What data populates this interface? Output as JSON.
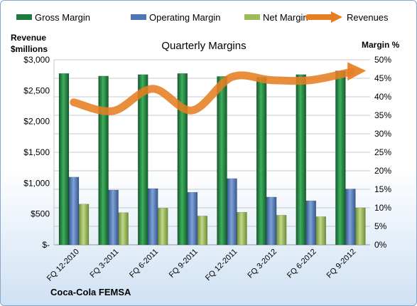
{
  "chart_data": {
    "type": "bar",
    "title": "Quarterly Margins",
    "company": "Coca-Cola FEMSA",
    "left_axis_label": [
      "Revenue",
      "$millions"
    ],
    "right_axis_label": "Margin %",
    "categories": [
      "FQ 12-2010",
      "FQ 3-2011",
      "FQ 6-2011",
      "FQ 9-2011",
      "FQ 12-2011",
      "FQ 3-2012",
      "FQ 6-2012",
      "FQ 9-2012"
    ],
    "left_ticks": [
      "$-",
      "$500",
      "$1,000",
      "$1,500",
      "$2,000",
      "$2,500",
      "$3,000"
    ],
    "right_ticks": [
      "0%",
      "5%",
      "10%",
      "15%",
      "20%",
      "25%",
      "30%",
      "35%",
      "40%",
      "45%",
      "50%"
    ],
    "left_range": [
      0,
      3000
    ],
    "right_range": [
      0,
      50
    ],
    "grid": true,
    "legend_position": "top",
    "series": [
      {
        "name": "Gross Margin",
        "axis": "right",
        "kind": "bar",
        "color": "#1e7a3c",
        "values": [
          46.3,
          45.6,
          46.0,
          46.3,
          45.5,
          45.3,
          46.0,
          47.0
        ]
      },
      {
        "name": "Operating Margin",
        "axis": "right",
        "kind": "bar",
        "color": "#4d76b2",
        "values": [
          18.3,
          14.8,
          15.2,
          14.2,
          17.9,
          12.9,
          11.9,
          15.1
        ]
      },
      {
        "name": "Net Margin",
        "axis": "right",
        "kind": "bar",
        "color": "#9bbb59",
        "values": [
          11.0,
          8.7,
          9.9,
          7.8,
          8.8,
          8.0,
          7.6,
          10.0
        ]
      },
      {
        "name": "Revenues",
        "axis": "left",
        "kind": "line",
        "color": "#e67e22",
        "values": [
          2310,
          2170,
          2530,
          2180,
          2720,
          2670,
          2670,
          2800
        ]
      }
    ]
  }
}
